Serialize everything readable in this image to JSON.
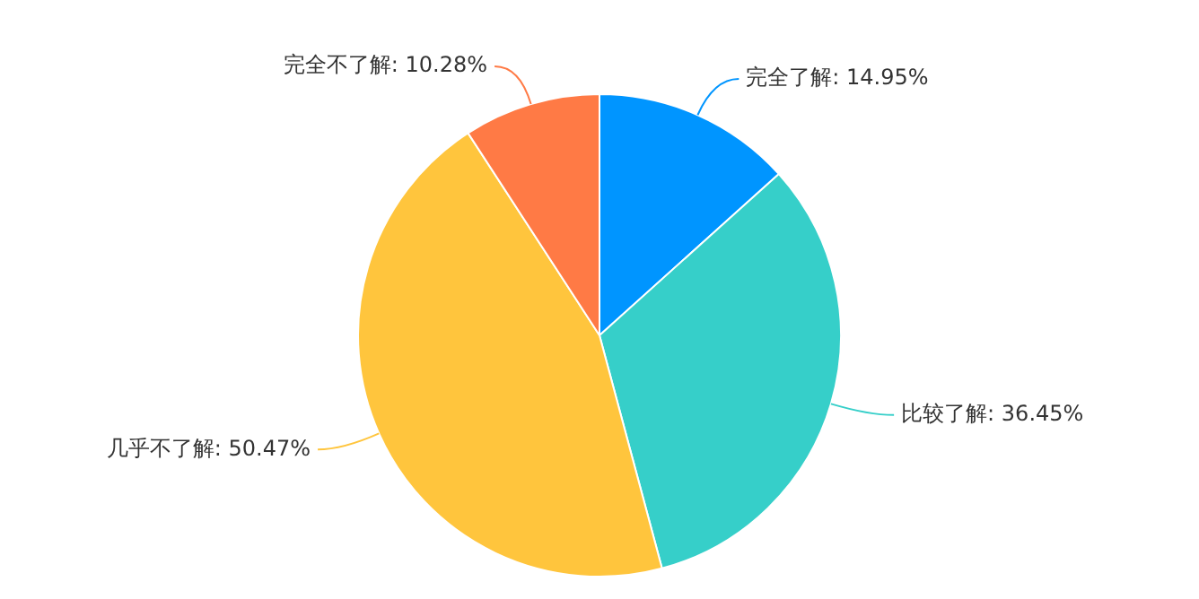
{
  "chart_data": {
    "type": "pie",
    "categories": [
      "完全了解",
      "比较了解",
      "几乎不了解",
      "完全不了解"
    ],
    "values": [
      14.95,
      36.45,
      50.47,
      10.28
    ],
    "value_labels": [
      "14.95%",
      "36.45%",
      "50.47%",
      "10.28%"
    ],
    "colors": [
      "#0095ff",
      "#36cfc9",
      "#ffc53d",
      "#ff7a45"
    ],
    "legend": false
  }
}
